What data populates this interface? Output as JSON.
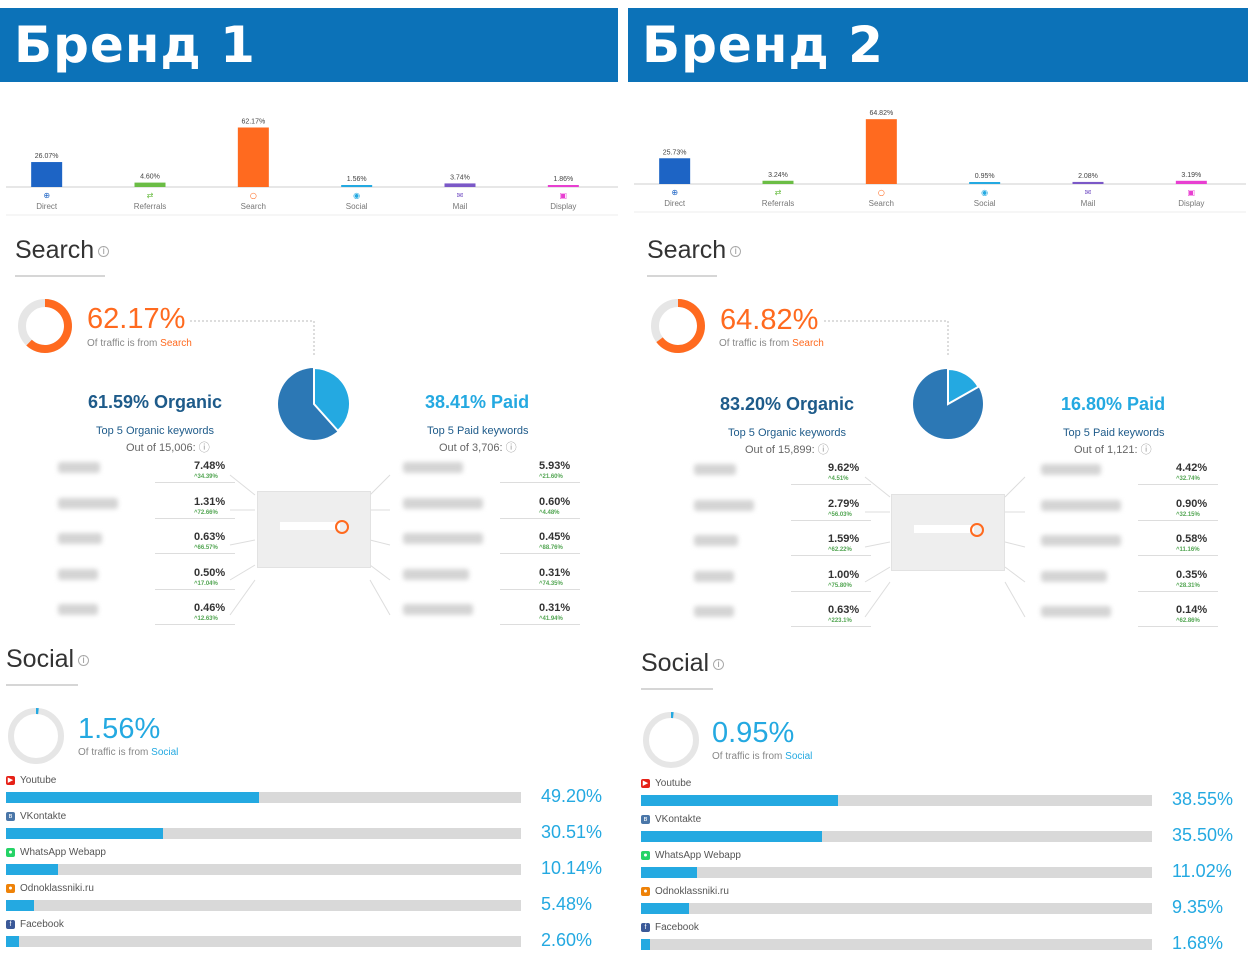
{
  "brands": [
    {
      "banner": "Бренд 1",
      "chart_data": {
        "type": "bar",
        "categories": [
          "Direct",
          "Referrals",
          "Search",
          "Social",
          "Mail",
          "Display"
        ],
        "values": [
          26.07,
          4.6,
          62.17,
          1.56,
          3.74,
          1.86
        ],
        "value_labels": [
          "26.07%",
          "4.60%",
          "62.17%",
          "1.56%",
          "3.74%",
          "1.86%"
        ],
        "colors": [
          "#1d64c5",
          "#6bbd45",
          "#ff6a1f",
          "#24a9e1",
          "#7b58c7",
          "#e83fd1"
        ],
        "icons": [
          "direct-icon",
          "referrals-icon",
          "search-icon",
          "social-icon",
          "mail-icon",
          "display-icon"
        ],
        "ylim": [
          0,
          70
        ]
      },
      "search": {
        "title": "Search",
        "percent": "62.17%",
        "percent_value": 62.17,
        "subtitle_prefix": "Of traffic is from ",
        "subtitle_source": "Search",
        "organic_value": 61.59,
        "organic_heading": "61.59% Organic",
        "paid_heading": "38.41% Paid",
        "organic_top": "Top 5 Organic keywords",
        "organic_out": "Out of 15,006:",
        "paid_top": "Top 5 Paid keywords",
        "paid_out": "Out of 3,706:",
        "organic_keywords": [
          {
            "pct": "7.48%",
            "chg": "^34.39%"
          },
          {
            "pct": "1.31%",
            "chg": "^72.66%"
          },
          {
            "pct": "0.63%",
            "chg": "^66.57%"
          },
          {
            "pct": "0.50%",
            "chg": "^17.04%"
          },
          {
            "pct": "0.46%",
            "chg": "^12.63%"
          }
        ],
        "paid_keywords": [
          {
            "pct": "5.93%",
            "chg": "^21.60%"
          },
          {
            "pct": "0.60%",
            "chg": "^4.48%"
          },
          {
            "pct": "0.45%",
            "chg": "^88.76%"
          },
          {
            "pct": "0.31%",
            "chg": "^74.35%"
          },
          {
            "pct": "0.31%",
            "chg": "^41.94%"
          }
        ]
      },
      "social": {
        "title": "Social",
        "percent": "1.56%",
        "percent_value": 1.56,
        "subtitle_prefix": "Of traffic is from ",
        "subtitle_source": "Social",
        "items": [
          {
            "name": "Youtube",
            "value": 49.2,
            "label": "49.20%",
            "icon": "youtube-icon",
            "icon_color": "#e62117"
          },
          {
            "name": "VKontakte",
            "value": 30.51,
            "label": "30.51%",
            "icon": "vkontakte-icon",
            "icon_color": "#4a76a8"
          },
          {
            "name": "WhatsApp Webapp",
            "value": 10.14,
            "label": "10.14%",
            "icon": "whatsapp-icon",
            "icon_color": "#25d366"
          },
          {
            "name": "Odnoklassniki.ru",
            "value": 5.48,
            "label": "5.48%",
            "icon": "odnoklassniki-icon",
            "icon_color": "#ee8208"
          },
          {
            "name": "Facebook",
            "value": 2.6,
            "label": "2.60%",
            "icon": "facebook-icon",
            "icon_color": "#3b5998"
          }
        ]
      }
    },
    {
      "banner": "Бренд 2",
      "chart_data": {
        "type": "bar",
        "categories": [
          "Direct",
          "Referrals",
          "Search",
          "Social",
          "Mail",
          "Display"
        ],
        "values": [
          25.73,
          3.24,
          64.82,
          0.95,
          2.08,
          3.19
        ],
        "value_labels": [
          "25.73%",
          "3.24%",
          "64.82%",
          "0.95%",
          "2.08%",
          "3.19%"
        ],
        "colors": [
          "#1d64c5",
          "#6bbd45",
          "#ff6a1f",
          "#24a9e1",
          "#7b58c7",
          "#e83fd1"
        ],
        "icons": [
          "direct-icon",
          "referrals-icon",
          "search-icon",
          "social-icon",
          "mail-icon",
          "display-icon"
        ],
        "ylim": [
          0,
          70
        ]
      },
      "search": {
        "title": "Search",
        "percent": "64.82%",
        "percent_value": 64.82,
        "subtitle_prefix": "Of traffic is from ",
        "subtitle_source": "Search",
        "organic_value": 83.2,
        "organic_heading": "83.20% Organic",
        "paid_heading": "16.80% Paid",
        "organic_top": "Top 5 Organic keywords",
        "organic_out": "Out of 15,899:",
        "paid_top": "Top 5 Paid keywords",
        "paid_out": "Out of 1,121:",
        "organic_keywords": [
          {
            "pct": "9.62%",
            "chg": "^4.51%"
          },
          {
            "pct": "2.79%",
            "chg": "^56.03%"
          },
          {
            "pct": "1.59%",
            "chg": "^62.22%"
          },
          {
            "pct": "1.00%",
            "chg": "^75.80%"
          },
          {
            "pct": "0.63%",
            "chg": "^223.1%"
          }
        ],
        "paid_keywords": [
          {
            "pct": "4.42%",
            "chg": "^32.74%"
          },
          {
            "pct": "0.90%",
            "chg": "^32.15%"
          },
          {
            "pct": "0.58%",
            "chg": "^11.16%"
          },
          {
            "pct": "0.35%",
            "chg": "^28.31%"
          },
          {
            "pct": "0.14%",
            "chg": "^62.86%"
          }
        ]
      },
      "social": {
        "title": "Social",
        "percent": "0.95%",
        "percent_value": 0.95,
        "subtitle_prefix": "Of traffic is from ",
        "subtitle_source": "Social",
        "items": [
          {
            "name": "Youtube",
            "value": 38.55,
            "label": "38.55%",
            "icon": "youtube-icon",
            "icon_color": "#e62117"
          },
          {
            "name": "VKontakte",
            "value": 35.5,
            "label": "35.50%",
            "icon": "vkontakte-icon",
            "icon_color": "#4a76a8"
          },
          {
            "name": "WhatsApp Webapp",
            "value": 11.02,
            "label": "11.02%",
            "icon": "whatsapp-icon",
            "icon_color": "#25d366"
          },
          {
            "name": "Odnoklassniki.ru",
            "value": 9.35,
            "label": "9.35%",
            "icon": "odnoklassniki-icon",
            "icon_color": "#ee8208"
          },
          {
            "name": "Facebook",
            "value": 1.68,
            "label": "1.68%",
            "icon": "facebook-icon",
            "icon_color": "#3b5998"
          }
        ]
      }
    }
  ]
}
